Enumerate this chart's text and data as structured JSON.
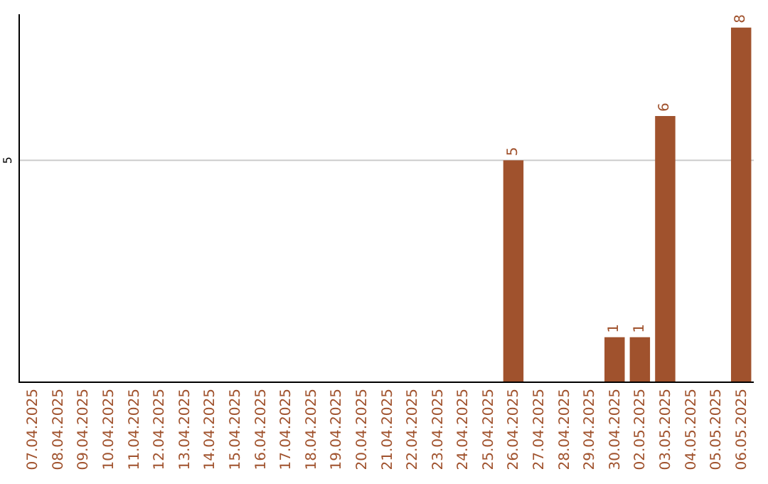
{
  "chart_data": {
    "type": "bar",
    "categories": [
      "07.04.2025",
      "08.04.2025",
      "09.04.2025",
      "10.04.2025",
      "11.04.2025",
      "12.04.2025",
      "13.04.2025",
      "14.04.2025",
      "15.04.2025",
      "16.04.2025",
      "17.04.2025",
      "18.04.2025",
      "19.04.2025",
      "20.04.2025",
      "21.04.2025",
      "22.04.2025",
      "23.04.2025",
      "24.04.2025",
      "25.04.2025",
      "26.04.2025",
      "27.04.2025",
      "28.04.2025",
      "29.04.2025",
      "30.04.2025",
      "02.05.2025",
      "03.05.2025",
      "04.05.2025",
      "05.05.2025",
      "06.05.2025"
    ],
    "values": [
      null,
      null,
      null,
      null,
      null,
      null,
      null,
      null,
      null,
      null,
      null,
      null,
      null,
      null,
      null,
      null,
      null,
      null,
      null,
      5,
      null,
      null,
      null,
      1,
      1,
      6,
      null,
      null,
      8
    ],
    "data_labels": true,
    "color": "#a0522d",
    "ylim": [
      0,
      8.3
    ],
    "ref_lines": [
      {
        "axis": "y",
        "value": 5,
        "label": "5",
        "color": "#cccccc"
      }
    ],
    "legend": false
  }
}
